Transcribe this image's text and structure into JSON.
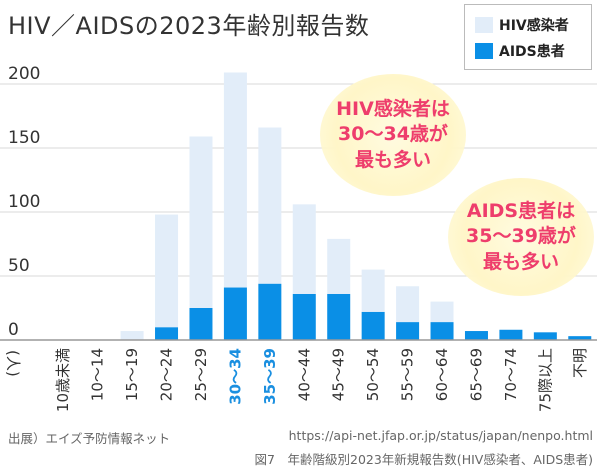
{
  "chart_data": {
    "type": "bar",
    "stacked": true,
    "title": "HIV／AIDSの2023年齢別報告数",
    "ylabel": "(人)",
    "ylim": [
      0,
      220
    ],
    "yticks": [
      0,
      50,
      100,
      150,
      200
    ],
    "grid": true,
    "legend_position": "top-right",
    "categories": [
      "10歳未満",
      "10～14",
      "15～19",
      "20～24",
      "25～29",
      "30～34",
      "35～39",
      "40～44",
      "45～49",
      "50～54",
      "55～59",
      "60～64",
      "65～69",
      "70～74",
      "75際以上",
      "不明"
    ],
    "highlighted_categories": [
      "30～34",
      "35～39"
    ],
    "series": [
      {
        "name": "HIV感染者",
        "color": "#e2edf9",
        "values": [
          0,
          0,
          7,
          88,
          134,
          168,
          122,
          70,
          43,
          33,
          28,
          16,
          0,
          0,
          0,
          0
        ]
      },
      {
        "name": "AIDS患者",
        "color": "#0a8fe6",
        "values": [
          0,
          0,
          0,
          10,
          25,
          41,
          44,
          36,
          36,
          22,
          14,
          14,
          7,
          8,
          6,
          3
        ]
      }
    ]
  },
  "colors": {
    "hiv": "#e2edf9",
    "aids": "#0a8fe6",
    "highlight_text": "#1a8fe0",
    "callout_text": "#ee3d6c",
    "grid": "#d9d9d9"
  },
  "callouts": {
    "hiv": {
      "line1": "HIV感染者は",
      "line2": "30～34歳が",
      "line3": "最も多い"
    },
    "aids": {
      "line1": "AIDS患者は",
      "line2": "35～39歳が",
      "line3": "最も多い"
    }
  },
  "footer": {
    "source": "出展）エイズ予防情報ネット",
    "url": "https://api-net.jfap.or.jp/status/japan/nenpo.html",
    "caption": "図7　年齢階級別2023年新規報告数(HIV感染者、AIDS患者)"
  }
}
